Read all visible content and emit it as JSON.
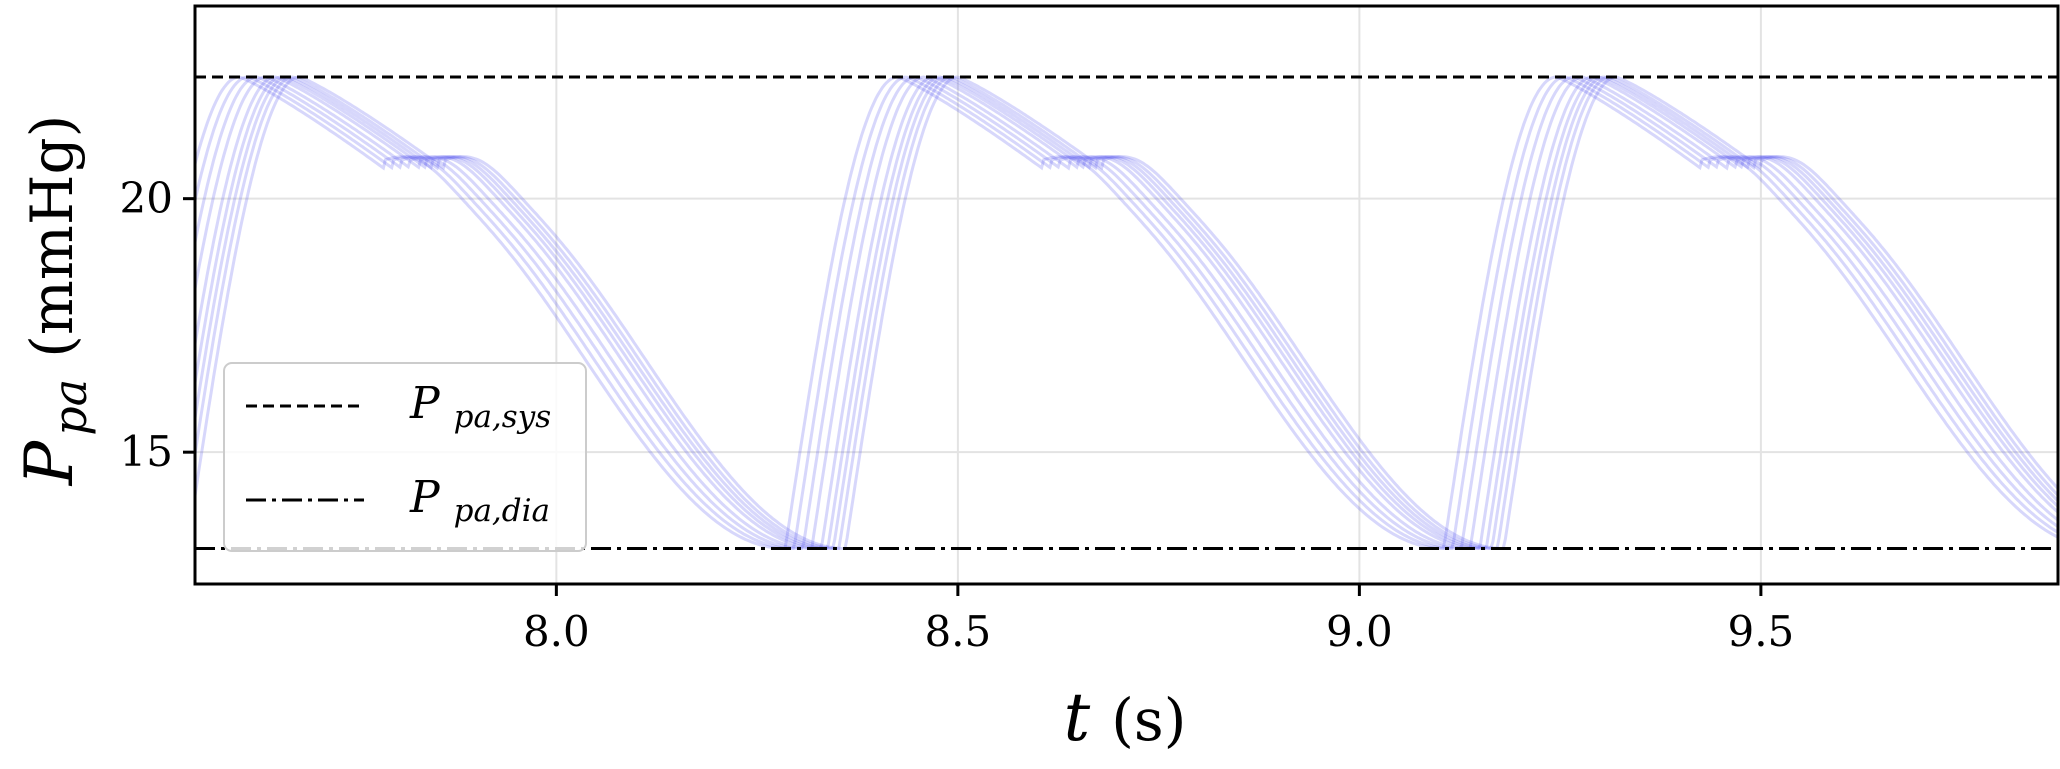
{
  "chart_data": {
    "type": "line",
    "xlabel": {
      "main": "t",
      "unit": "(s)"
    },
    "ylabel": {
      "main": "P",
      "sub": "pa",
      "unit": "(mmHg)"
    },
    "xlim": [
      7.55,
      9.87
    ],
    "ylim": [
      12.4,
      23.8
    ],
    "x_ticks": [
      8.0,
      8.5,
      9.0,
      9.5
    ],
    "x_tick_labels": [
      "8.0",
      "8.5",
      "9.0",
      "9.5"
    ],
    "y_ticks": [
      15,
      20
    ],
    "y_tick_labels": [
      "15",
      "20"
    ],
    "grid": true,
    "legend_position": "lower-left",
    "reference_lines": [
      {
        "legend": {
          "main": "P",
          "sub": "pa,sys"
        },
        "y": 22.4,
        "style": "dashed"
      },
      {
        "legend": {
          "main": "P",
          "sub": "pa,dia"
        },
        "y": 13.1,
        "style": "dashdot"
      }
    ],
    "waveform": {
      "period": 0.82,
      "cycle_starts": [
        6.69,
        7.51,
        8.33,
        9.15
      ],
      "p_sys": 22.4,
      "p_dia": 13.1,
      "curve_count": 9,
      "cycle_shifts": [
        -0.045,
        -0.034,
        -0.023,
        -0.012,
        0.0,
        0.008,
        0.015,
        0.022,
        0.03
      ],
      "color": "#4a4aee",
      "opacity": 0.22
    }
  }
}
